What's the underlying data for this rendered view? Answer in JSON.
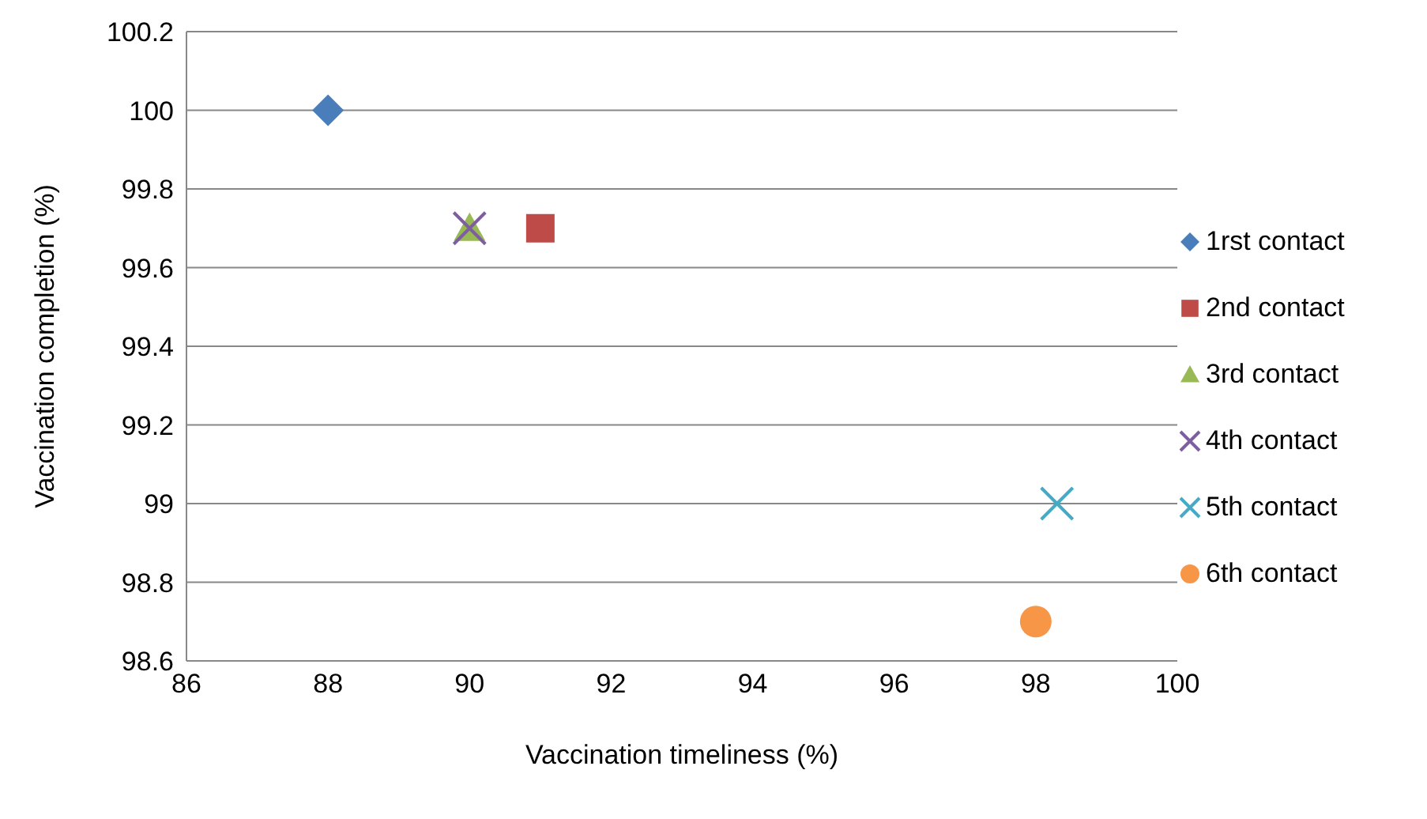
{
  "chart_data": {
    "type": "scatter",
    "xlabel": "Vaccination timeliness (%)",
    "ylabel": "Vaccination completion (%)",
    "xlim": [
      86,
      100
    ],
    "xticks": [
      86,
      88,
      90,
      92,
      94,
      96,
      98,
      100
    ],
    "ylim": [
      98.6,
      100.2
    ],
    "yticks": [
      98.6,
      98.8,
      99,
      99.2,
      99.4,
      99.6,
      99.8,
      100,
      100.2
    ],
    "grid": "y",
    "legend": "right",
    "series": [
      {
        "name": "1rst contact",
        "color": "#4a7ebb",
        "marker": "diamond",
        "x": [
          88
        ],
        "values": [
          100
        ]
      },
      {
        "name": "2nd contact",
        "color": "#be4b48",
        "marker": "square",
        "x": [
          91
        ],
        "values": [
          99.7
        ]
      },
      {
        "name": "3rd contact",
        "color": "#98b954",
        "marker": "triangle",
        "x": [
          90
        ],
        "values": [
          99.7
        ]
      },
      {
        "name": "4th contact",
        "color": "#7d5fa0",
        "marker": "cross",
        "x": [
          90
        ],
        "values": [
          99.7
        ]
      },
      {
        "name": "5th contact",
        "color": "#46aac5",
        "marker": "cross",
        "x": [
          98.3
        ],
        "values": [
          99
        ]
      },
      {
        "name": "6th contact",
        "color": "#f79646",
        "marker": "circle",
        "x": [
          98
        ],
        "values": [
          98.7
        ]
      }
    ]
  }
}
